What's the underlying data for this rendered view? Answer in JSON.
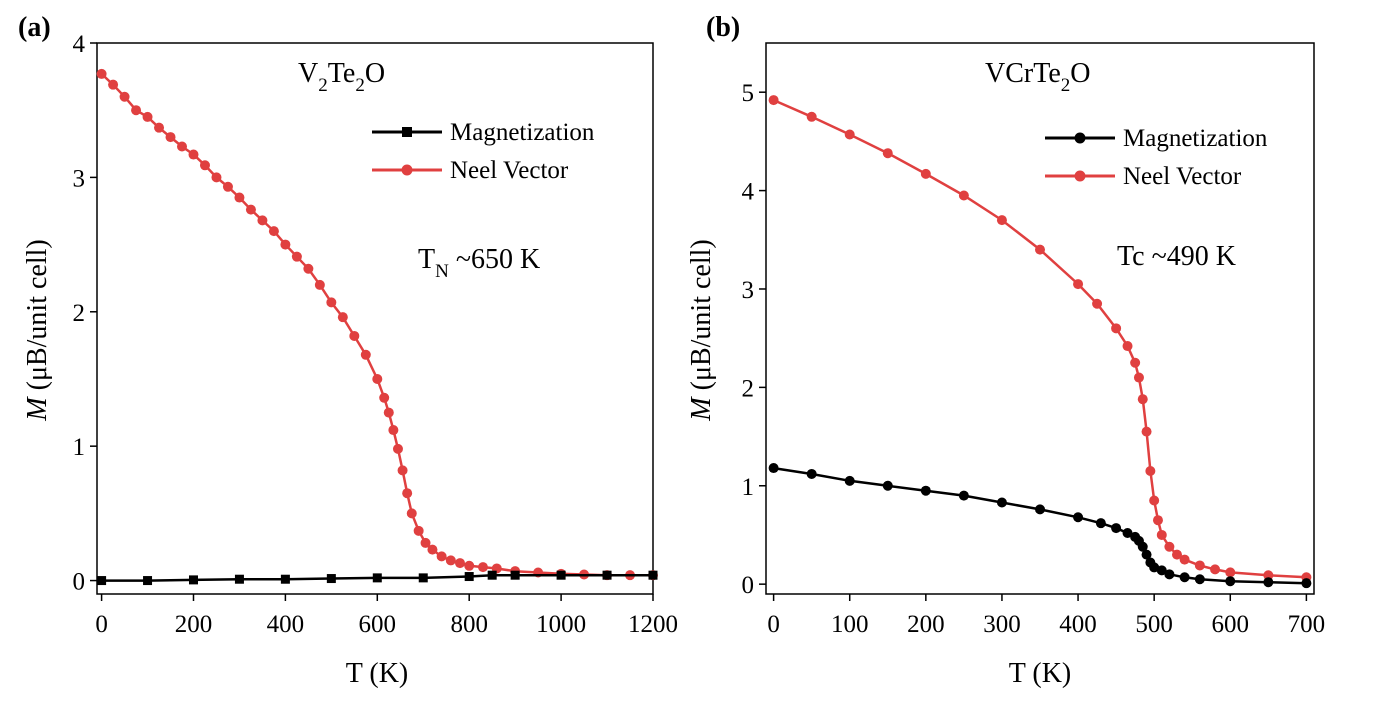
{
  "chart_data": [
    {
      "type": "line",
      "panel_label": "(a)",
      "formula": {
        "base1": "V",
        "sub1": "2",
        "base2": "Te",
        "sub2": "2",
        "base3": "O"
      },
      "xlabel": "T (K)",
      "ylabel_italic": "M",
      "ylabel_rest": " (μB/unit cell)",
      "xlim": [
        -10,
        1200
      ],
      "ylim": [
        -0.1,
        4
      ],
      "xticks": [
        0,
        200,
        400,
        600,
        800,
        1000,
        1200
      ],
      "yticks": [
        0,
        1,
        2,
        3,
        4
      ],
      "annotation": {
        "base": "T",
        "sub": "N",
        "rest": " ~650 K"
      },
      "legend_position": "upper-right",
      "series": [
        {
          "name": "Magnetization",
          "color": "#000000",
          "marker": "square",
          "x": [
            0,
            100,
            200,
            300,
            400,
            500,
            600,
            700,
            800,
            850,
            900,
            1000,
            1100,
            1200
          ],
          "y": [
            0.0,
            0.0,
            0.005,
            0.01,
            0.01,
            0.015,
            0.02,
            0.02,
            0.03,
            0.04,
            0.04,
            0.04,
            0.04,
            0.04
          ]
        },
        {
          "name": "Neel Vector",
          "color": "#e04040",
          "marker": "circle",
          "x": [
            0,
            25,
            50,
            75,
            100,
            125,
            150,
            175,
            200,
            225,
            250,
            275,
            300,
            325,
            350,
            375,
            400,
            425,
            450,
            475,
            500,
            525,
            550,
            575,
            600,
            615,
            625,
            635,
            645,
            655,
            665,
            675,
            690,
            705,
            720,
            740,
            760,
            780,
            800,
            830,
            860,
            900,
            950,
            1000,
            1050,
            1100,
            1150,
            1200
          ],
          "y": [
            3.77,
            3.69,
            3.6,
            3.5,
            3.45,
            3.37,
            3.3,
            3.23,
            3.17,
            3.09,
            3.0,
            2.93,
            2.85,
            2.76,
            2.68,
            2.6,
            2.5,
            2.41,
            2.32,
            2.2,
            2.07,
            1.96,
            1.82,
            1.68,
            1.5,
            1.36,
            1.25,
            1.12,
            0.98,
            0.82,
            0.65,
            0.5,
            0.37,
            0.28,
            0.23,
            0.18,
            0.15,
            0.13,
            0.11,
            0.1,
            0.09,
            0.07,
            0.06,
            0.05,
            0.045,
            0.04,
            0.04,
            0.04
          ]
        }
      ]
    },
    {
      "type": "line",
      "panel_label": "(b)",
      "formula": {
        "base1": "VCrTe",
        "sub1": "2",
        "base2": "O",
        "sub2": "",
        "base3": ""
      },
      "xlabel": "T (K)",
      "ylabel_italic": "M",
      "ylabel_rest": " (μB/unit cell)",
      "xlim": [
        -10,
        710
      ],
      "ylim": [
        -0.1,
        5.5
      ],
      "xticks": [
        0,
        100,
        200,
        300,
        400,
        500,
        600,
        700
      ],
      "yticks": [
        0,
        1,
        2,
        3,
        4,
        5
      ],
      "annotation": {
        "base": "Tc ~490 K",
        "sub": "",
        "rest": ""
      },
      "legend_position": "upper-right",
      "series": [
        {
          "name": "Magnetization",
          "color": "#000000",
          "marker": "circle",
          "x": [
            0,
            50,
            100,
            150,
            200,
            250,
            300,
            350,
            400,
            430,
            450,
            465,
            475,
            480,
            485,
            490,
            495,
            500,
            510,
            520,
            540,
            560,
            600,
            650,
            700
          ],
          "y": [
            1.18,
            1.12,
            1.05,
            1.0,
            0.95,
            0.9,
            0.83,
            0.76,
            0.68,
            0.62,
            0.57,
            0.52,
            0.48,
            0.44,
            0.38,
            0.3,
            0.22,
            0.17,
            0.14,
            0.1,
            0.07,
            0.05,
            0.03,
            0.02,
            0.01
          ]
        },
        {
          "name": "Neel Vector",
          "color": "#e04040",
          "marker": "circle",
          "x": [
            0,
            50,
            100,
            150,
            200,
            250,
            300,
            350,
            400,
            425,
            450,
            465,
            475,
            480,
            485,
            490,
            495,
            500,
            505,
            510,
            520,
            530,
            540,
            560,
            580,
            600,
            650,
            700
          ],
          "y": [
            4.92,
            4.75,
            4.57,
            4.38,
            4.17,
            3.95,
            3.7,
            3.4,
            3.05,
            2.85,
            2.6,
            2.42,
            2.25,
            2.1,
            1.88,
            1.55,
            1.15,
            0.85,
            0.65,
            0.5,
            0.38,
            0.3,
            0.25,
            0.19,
            0.15,
            0.12,
            0.09,
            0.07
          ]
        }
      ]
    }
  ]
}
